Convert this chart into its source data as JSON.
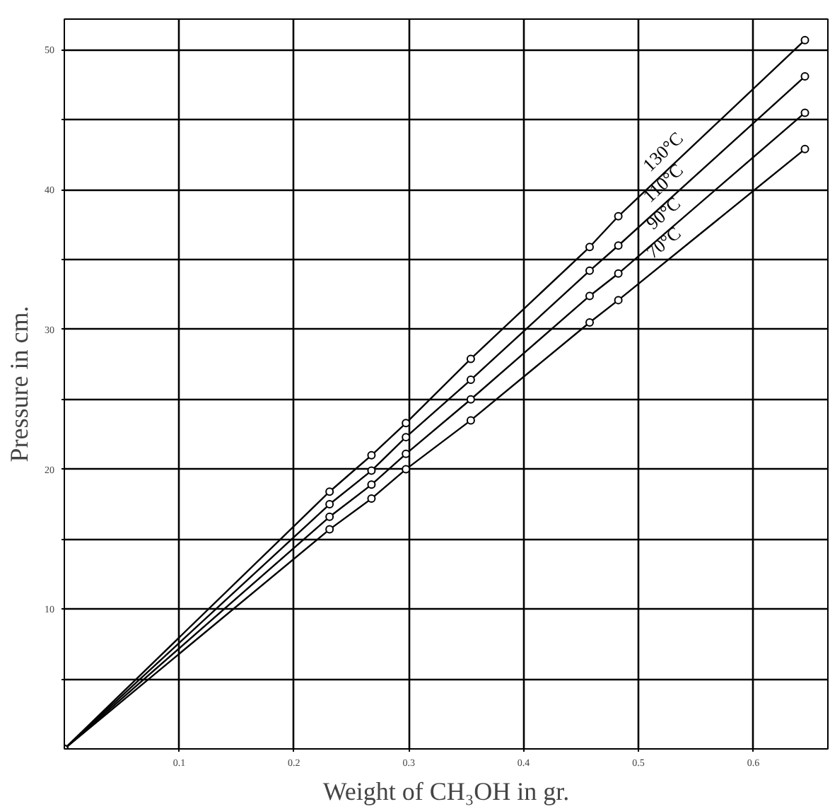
{
  "chart_data": {
    "type": "line",
    "xlabel": "Weight of CH₃OH in gr.",
    "ylabel": "Pressure in cm.",
    "x": [
      0,
      0.231,
      0.2675,
      0.2975,
      0.354,
      0.4575,
      0.4825,
      0.645
    ],
    "series": [
      {
        "name": "130°C",
        "color": "#000000",
        "values": [
          0,
          18.4,
          21.0,
          23.3,
          27.9,
          35.9,
          38.1,
          50.7
        ]
      },
      {
        "name": "110°C",
        "color": "#000000",
        "values": [
          0,
          17.5,
          19.9,
          22.3,
          26.4,
          34.2,
          36.0,
          48.1
        ]
      },
      {
        "name": "90°C",
        "color": "#000000",
        "values": [
          0,
          16.6,
          18.9,
          21.1,
          25.0,
          32.4,
          34.0,
          45.5
        ]
      },
      {
        "name": "70°C",
        "color": "#000000",
        "values": [
          0,
          15.7,
          17.9,
          20.0,
          23.5,
          30.5,
          32.1,
          42.9
        ]
      }
    ],
    "xlim": [
      0,
      0.665
    ],
    "ylim": [
      0,
      52.2
    ],
    "xticks": [
      0.1,
      0.2,
      0.3,
      0.4,
      0.5,
      0.6
    ],
    "yticks": [
      {
        "value": 5,
        "label": null
      },
      10,
      {
        "value": 15,
        "label": null
      },
      20,
      {
        "value": 25,
        "label": null
      },
      30,
      {
        "value": 35,
        "label": null
      },
      40,
      {
        "value": 45,
        "label": null
      },
      50
    ],
    "grid": true,
    "marker": "circle",
    "line_style": "solid",
    "legend": false
  }
}
